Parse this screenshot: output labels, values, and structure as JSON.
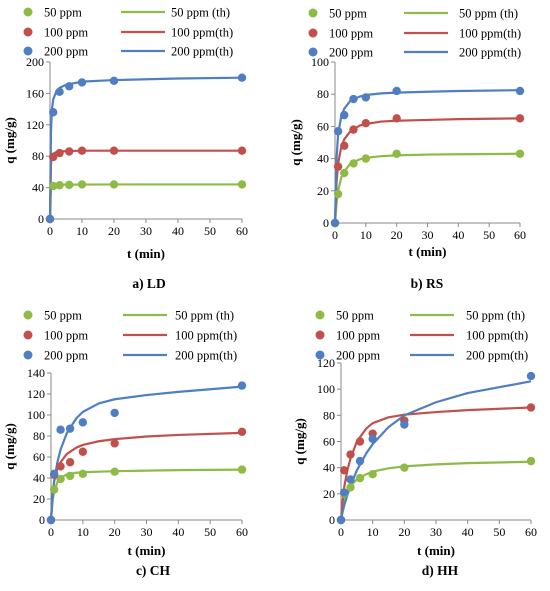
{
  "colors": {
    "s50": "#8dbb45",
    "s100": "#c1504d",
    "s200": "#4f7ec2"
  },
  "chart_data": [
    {
      "type": "scatter",
      "title": "a)    LD",
      "xlabel": "t (min)",
      "ylabel": "q (mg/g)",
      "xlim": [
        0,
        60
      ],
      "ylim": [
        0,
        200
      ],
      "xticks": [
        "0",
        "10",
        "20",
        "30",
        "40",
        "50",
        "60"
      ],
      "yticks": [
        "0",
        "40",
        "80",
        "120",
        "160",
        "200"
      ],
      "grid": false,
      "legend_position": "top",
      "series": [
        {
          "name": "50 ppm",
          "kind": "points",
          "color_key": "s50",
          "x": [
            0,
            1,
            3,
            6,
            10,
            20,
            60
          ],
          "y": [
            0,
            42,
            43,
            43.5,
            44,
            44,
            44
          ]
        },
        {
          "name": "100 ppm",
          "kind": "points",
          "color_key": "s100",
          "x": [
            0,
            1,
            3,
            6,
            10,
            20,
            60
          ],
          "y": [
            0,
            79,
            84,
            86,
            87,
            87,
            87
          ]
        },
        {
          "name": "200 ppm",
          "kind": "points",
          "color_key": "s200",
          "x": [
            0,
            1,
            3,
            6,
            10,
            20,
            60
          ],
          "y": [
            0,
            136,
            162,
            169,
            174,
            176,
            180
          ]
        },
        {
          "name": "50 ppm (th)",
          "kind": "line",
          "color_key": "s50",
          "x": [
            0,
            0.3,
            0.7,
            1,
            2,
            3,
            5,
            10,
            20,
            40,
            60
          ],
          "y": [
            0,
            38,
            42,
            43,
            43.5,
            43.7,
            43.8,
            43.9,
            44,
            44,
            44
          ]
        },
        {
          "name": "100 ppm(th)",
          "kind": "line",
          "color_key": "s100",
          "x": [
            0,
            0.3,
            0.6,
            1,
            2,
            3,
            5,
            10,
            20,
            40,
            60
          ],
          "y": [
            0,
            70,
            80,
            83,
            85.5,
            86,
            86.5,
            87,
            87,
            87,
            87
          ]
        },
        {
          "name": "200 ppm(th)",
          "kind": "line",
          "color_key": "s200",
          "x": [
            0,
            0.3,
            0.6,
            1,
            2,
            3,
            5,
            10,
            20,
            40,
            60
          ],
          "y": [
            0,
            110,
            140,
            152,
            163,
            167,
            171,
            175,
            177,
            179,
            180
          ]
        }
      ]
    },
    {
      "type": "scatter",
      "title": "b) RS",
      "xlabel": "t (min)",
      "ylabel": "q (mg/g)",
      "xlim": [
        0,
        60
      ],
      "ylim": [
        0,
        100
      ],
      "xticks": [
        "0",
        "10",
        "20",
        "30",
        "40",
        "50",
        "60"
      ],
      "yticks": [
        "0",
        "20",
        "40",
        "60",
        "80",
        "100"
      ],
      "grid": false,
      "legend_position": "top",
      "series": [
        {
          "name": "50 ppm",
          "kind": "points",
          "color_key": "s50",
          "x": [
            0,
            1,
            3,
            6,
            10,
            20,
            60
          ],
          "y": [
            0,
            18,
            31,
            37,
            40,
            43,
            43
          ]
        },
        {
          "name": "100 ppm",
          "kind": "points",
          "color_key": "s100",
          "x": [
            0,
            1,
            3,
            6,
            10,
            20,
            60
          ],
          "y": [
            0,
            35,
            48,
            58,
            62,
            65,
            65
          ]
        },
        {
          "name": "200 ppm",
          "kind": "points",
          "color_key": "s200",
          "x": [
            0,
            1,
            3,
            6,
            10,
            20,
            60
          ],
          "y": [
            0,
            57,
            67,
            77,
            78,
            82,
            82
          ]
        },
        {
          "name": "50 ppm (th)",
          "kind": "line",
          "color_key": "s50",
          "x": [
            0,
            0.5,
            1,
            2,
            3,
            5,
            8,
            10,
            15,
            20,
            30,
            40,
            60
          ],
          "y": [
            0,
            12,
            20,
            28,
            32,
            37,
            39.5,
            40.5,
            41.5,
            42,
            42.5,
            42.7,
            43
          ]
        },
        {
          "name": "100 ppm(th)",
          "kind": "line",
          "color_key": "s100",
          "x": [
            0,
            0.5,
            1,
            2,
            3,
            5,
            8,
            10,
            15,
            20,
            30,
            40,
            60
          ],
          "y": [
            0,
            25,
            37,
            47,
            52,
            57,
            60.5,
            61.5,
            63,
            63.5,
            64,
            64.5,
            65
          ]
        },
        {
          "name": "200 ppm(th)",
          "kind": "line",
          "color_key": "s200",
          "x": [
            0,
            0.5,
            1,
            2,
            3,
            5,
            8,
            10,
            15,
            20,
            30,
            40,
            60
          ],
          "y": [
            0,
            40,
            55,
            66,
            71,
            76,
            78.5,
            79.5,
            80.5,
            81,
            81.5,
            82,
            82.5
          ]
        }
      ]
    },
    {
      "type": "scatter",
      "title": "c) CH",
      "xlabel": "t (min)",
      "ylabel": "q (mg/g)",
      "xlim": [
        0,
        60
      ],
      "ylim": [
        0,
        140
      ],
      "xticks": [
        "0",
        "10",
        "20",
        "30",
        "40",
        "50",
        "60"
      ],
      "yticks": [
        "0",
        "20",
        "40",
        "60",
        "80",
        "100",
        "120",
        "140"
      ],
      "grid": false,
      "legend_position": "top",
      "series": [
        {
          "name": "50 ppm",
          "kind": "points",
          "color_key": "s50",
          "x": [
            0,
            1,
            3,
            6,
            10,
            20,
            60
          ],
          "y": [
            0,
            29,
            39,
            42,
            44,
            46,
            48
          ]
        },
        {
          "name": "100 ppm",
          "kind": "points",
          "color_key": "s100",
          "x": [
            0,
            1,
            3,
            6,
            10,
            20,
            60
          ],
          "y": [
            0,
            43,
            51,
            55,
            65,
            73,
            84
          ]
        },
        {
          "name": "200 ppm",
          "kind": "points",
          "color_key": "s200",
          "x": [
            0,
            1,
            3,
            6,
            10,
            20,
            60
          ],
          "y": [
            0,
            44,
            86,
            87,
            93,
            102,
            128
          ]
        },
        {
          "name": "50 ppm (th)",
          "kind": "line",
          "color_key": "s50",
          "x": [
            0,
            0.5,
            1,
            2,
            3,
            5,
            8,
            10,
            15,
            20,
            30,
            40,
            60
          ],
          "y": [
            0,
            18,
            27,
            36,
            40,
            43.5,
            45,
            45.5,
            46,
            46.5,
            47,
            47.5,
            48
          ]
        },
        {
          "name": "100 ppm(th)",
          "kind": "line",
          "color_key": "s100",
          "x": [
            0,
            0.5,
            1,
            2,
            3,
            5,
            8,
            10,
            15,
            20,
            30,
            40,
            60
          ],
          "y": [
            0,
            25,
            37,
            49,
            55,
            63,
            69,
            71.5,
            75,
            77,
            79.5,
            81,
            83
          ]
        },
        {
          "name": "200 ppm(th)",
          "kind": "line",
          "color_key": "s200",
          "x": [
            0,
            0.5,
            1,
            2,
            3,
            5,
            8,
            10,
            15,
            20,
            30,
            40,
            60
          ],
          "y": [
            0,
            22,
            37,
            55,
            67,
            83,
            97,
            103,
            111,
            115,
            119,
            122,
            127
          ]
        }
      ]
    },
    {
      "type": "scatter",
      "title": "d) HH",
      "xlabel": "t (min)",
      "ylabel": "q (mg/g)",
      "xlim": [
        0,
        60
      ],
      "ylim": [
        0,
        120
      ],
      "xticks": [
        "0",
        "10",
        "20",
        "30",
        "40",
        "50",
        "60"
      ],
      "yticks": [
        "0",
        "20",
        "40",
        "60",
        "80",
        "100",
        "120"
      ],
      "grid": false,
      "legend_position": "top",
      "series": [
        {
          "name": "50 ppm",
          "kind": "points",
          "color_key": "s50",
          "x": [
            0,
            1,
            3,
            6,
            10,
            20,
            60
          ],
          "y": [
            0,
            20,
            25,
            32,
            35,
            40,
            45
          ]
        },
        {
          "name": "100 ppm",
          "kind": "points",
          "color_key": "s100",
          "x": [
            0,
            1,
            3,
            6,
            10,
            20,
            60
          ],
          "y": [
            0,
            38,
            50,
            60,
            66,
            76,
            86
          ]
        },
        {
          "name": "200 ppm",
          "kind": "points",
          "color_key": "s200",
          "x": [
            0,
            1,
            3,
            6,
            10,
            20,
            60
          ],
          "y": [
            0,
            21,
            31,
            45,
            62,
            73,
            110
          ]
        },
        {
          "name": "50 ppm (th)",
          "kind": "line",
          "color_key": "s50",
          "x": [
            0,
            0.5,
            1,
            2,
            3,
            5,
            8,
            10,
            15,
            20,
            30,
            40,
            60
          ],
          "y": [
            0,
            10,
            16,
            22,
            26,
            31,
            35,
            37,
            39.5,
            41,
            42.5,
            43.5,
            44.5
          ]
        },
        {
          "name": "100 ppm(th)",
          "kind": "line",
          "color_key": "s100",
          "x": [
            0,
            0.5,
            1,
            2,
            3,
            5,
            8,
            10,
            15,
            20,
            30,
            40,
            60
          ],
          "y": [
            0,
            14,
            25,
            38,
            47,
            60,
            70,
            74,
            78.5,
            80.5,
            82.5,
            84,
            86
          ]
        },
        {
          "name": "200 ppm(th)",
          "kind": "line",
          "color_key": "s200",
          "x": [
            0,
            0.5,
            1,
            2,
            3,
            5,
            8,
            10,
            15,
            20,
            30,
            40,
            60
          ],
          "y": [
            0,
            6,
            11,
            19,
            26,
            38,
            51,
            58,
            71,
            80,
            90,
            97,
            106
          ]
        }
      ]
    }
  ]
}
